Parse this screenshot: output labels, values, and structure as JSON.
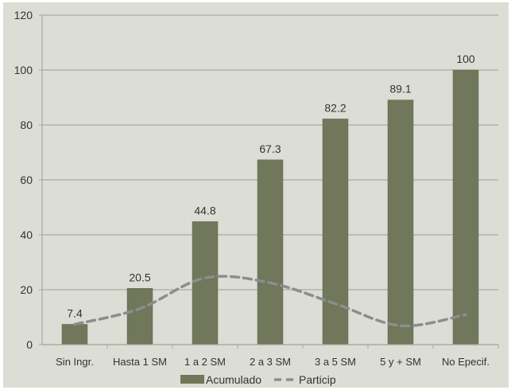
{
  "chart_data": {
    "type": "bar",
    "title": "",
    "xlabel": "",
    "ylabel": "",
    "categories": [
      "Sin Ingr.",
      "Hasta 1 SM",
      "1 a 2 SM",
      "2 a 3 SM",
      "3 a 5 SM",
      "5 y + SM",
      "No Epecif."
    ],
    "series": [
      {
        "name": "Acumulado",
        "type": "bar",
        "color": "#70775a",
        "values": [
          7.4,
          20.5,
          44.8,
          67.3,
          82.2,
          89.1,
          100
        ],
        "labels": [
          "7.4",
          "20.5",
          "44.8",
          "67.3",
          "82.2",
          "89.1",
          "100"
        ]
      },
      {
        "name": "Particip",
        "type": "line",
        "style": "dashed",
        "color": "#8c8d8f",
        "values": [
          7.4,
          13.1,
          24.3,
          22.5,
          14.9,
          6.9,
          10.9
        ]
      }
    ],
    "ylim": [
      0,
      120
    ],
    "yticks": [
      "0",
      "20",
      "40",
      "60",
      "80",
      "100",
      "120"
    ],
    "grid": true,
    "legend_position": "bottom",
    "background": "#dcddd5"
  }
}
